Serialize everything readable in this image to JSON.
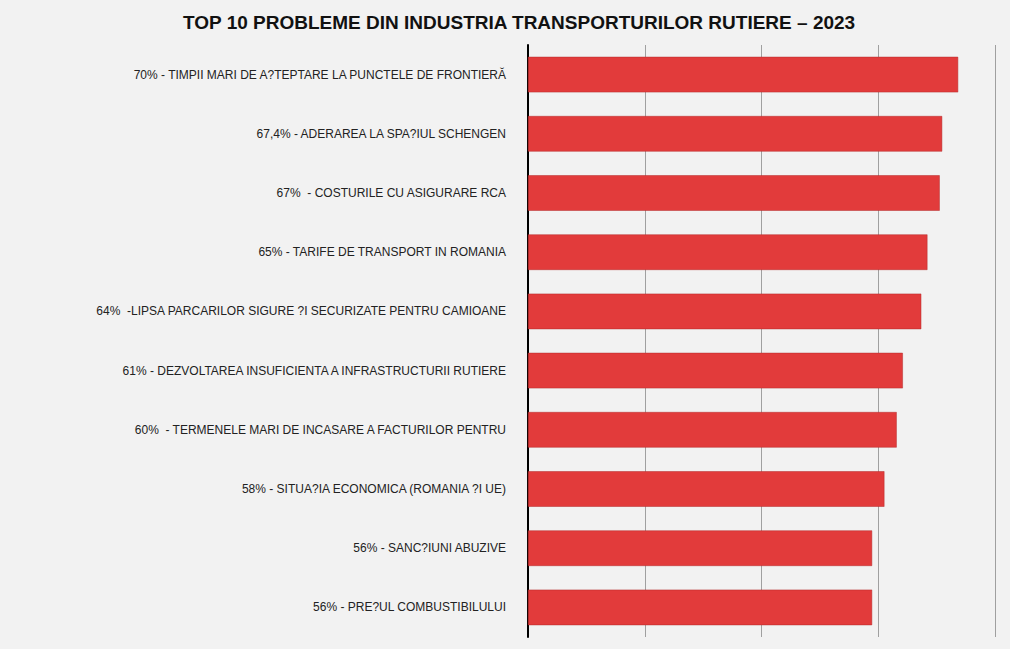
{
  "chart_data": {
    "type": "bar",
    "orientation": "horizontal",
    "title": "TOP 10 PROBLEME DIN INDUSTRIA TRANSPORTURILOR RUTIERE – 2023",
    "categories": [
      "70% - TIMPII MARI DE A?TEPTARE LA PUNCTELE DE FRONTIERĂ",
      "67,4% - ADERAREA LA SPA?IUL SCHENGEN",
      "67%  - COSTURILE CU ASIGURARE RCA",
      "65% - TARIFE DE TRANSPORT IN ROMANIA",
      "64%  -LIPSA PARCARILOR SIGURE ?I SECURIZATE PENTRU CAMIOANE",
      "61% - DEZVOLTAREA INSUFICIENTA A INFRASTRUCTURII RUTIERE",
      "60%  - TERMENELE MARI DE INCASARE A FACTURILOR PENTRU",
      "58% - SITUA?IA ECONOMICA (ROMANIA ?I UE)",
      "56% - SANC?IUNI ABUZIVE",
      "56% - PRE?UL COMBUSTIBILULUI"
    ],
    "values": [
      70,
      67.4,
      67,
      65,
      64,
      61,
      60,
      58,
      56,
      56
    ],
    "color": "#e23b3b",
    "xlim": [
      0,
      76
    ],
    "xticks": [
      0,
      19,
      38,
      57,
      76
    ],
    "grid": true,
    "tick_labels": "y"
  }
}
